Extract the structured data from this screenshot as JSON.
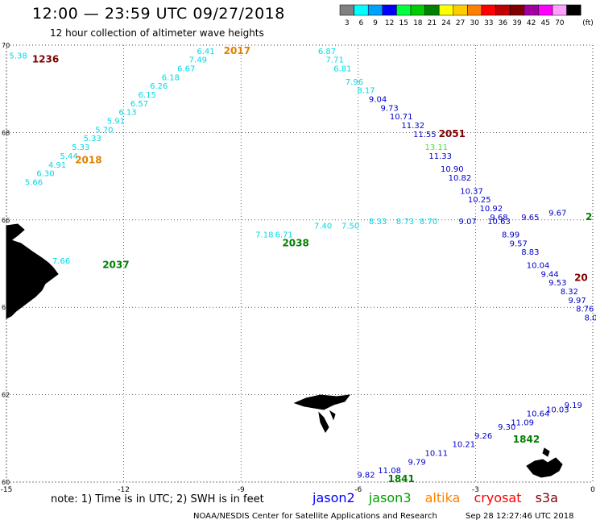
{
  "header": {
    "title": "12:00 — 23:59 UTC 09/27/2018",
    "subtitle": "12 hour collection of altimeter wave heights"
  },
  "legend": {
    "unit": "(ft)",
    "bins": [
      {
        "label": "3",
        "color": "#808080"
      },
      {
        "label": "6",
        "color": "#00ffff"
      },
      {
        "label": "9",
        "color": "#00a0ff"
      },
      {
        "label": "12",
        "color": "#0000ff"
      },
      {
        "label": "15",
        "color": "#00ff40"
      },
      {
        "label": "18",
        "color": "#00cc00"
      },
      {
        "label": "21",
        "color": "#008000"
      },
      {
        "label": "24",
        "color": "#ffff00"
      },
      {
        "label": "27",
        "color": "#ffcc00"
      },
      {
        "label": "30",
        "color": "#ff8000"
      },
      {
        "label": "33",
        "color": "#ff0000"
      },
      {
        "label": "36",
        "color": "#c00000"
      },
      {
        "label": "39",
        "color": "#800000"
      },
      {
        "label": "42",
        "color": "#a000a0"
      },
      {
        "label": "45",
        "color": "#ff00ff"
      },
      {
        "label": "70",
        "color": "#ffa0ff"
      },
      {
        "label": "",
        "color": "#000000"
      }
    ]
  },
  "axes": {
    "lon_ticks": [
      "-15",
      "-12",
      "-9",
      "-6",
      "-3",
      "0"
    ],
    "lat_ticks": [
      "70",
      "68",
      "66",
      "64",
      "62",
      "60"
    ]
  },
  "tracks": [
    {
      "satellite": "cryosat",
      "color": "#00d8e8",
      "points": [
        {
          "lon": -14.7,
          "lat": 69.7,
          "swh": "5.38"
        },
        {
          "lon": -9.9,
          "lat": 69.8,
          "swh": "6.41"
        },
        {
          "lon": -10.1,
          "lat": 69.6,
          "swh": "7.49"
        },
        {
          "lon": -10.4,
          "lat": 69.4,
          "swh": "6.67"
        },
        {
          "lon": -10.8,
          "lat": 69.2,
          "swh": "6.18"
        },
        {
          "lon": -11.1,
          "lat": 69.0,
          "swh": "6.26"
        },
        {
          "lon": -11.4,
          "lat": 68.8,
          "swh": "6.15"
        },
        {
          "lon": -11.6,
          "lat": 68.6,
          "swh": "6.57"
        },
        {
          "lon": -11.9,
          "lat": 68.4,
          "swh": "6.13"
        },
        {
          "lon": -12.2,
          "lat": 68.2,
          "swh": "5.91"
        },
        {
          "lon": -12.5,
          "lat": 68.0,
          "swh": "5.70"
        },
        {
          "lon": -12.8,
          "lat": 67.8,
          "swh": "5.33"
        },
        {
          "lon": -13.1,
          "lat": 67.6,
          "swh": "5.33"
        },
        {
          "lon": -13.4,
          "lat": 67.4,
          "swh": "5.44"
        },
        {
          "lon": -13.7,
          "lat": 67.2,
          "swh": "4.91"
        },
        {
          "lon": -14.0,
          "lat": 67.0,
          "swh": "6.30"
        },
        {
          "lon": -14.3,
          "lat": 66.8,
          "swh": "5.66"
        }
      ]
    },
    {
      "satellite": "cryosat",
      "color": "#00d8e8",
      "points": [
        {
          "lon": -6.8,
          "lat": 69.8,
          "swh": "6.87"
        },
        {
          "lon": -6.6,
          "lat": 69.6,
          "swh": "7.71"
        },
        {
          "lon": -6.4,
          "lat": 69.4,
          "swh": "6.81"
        },
        {
          "lon": -6.1,
          "lat": 69.1,
          "swh": "7.96"
        },
        {
          "lon": -5.8,
          "lat": 68.9,
          "swh": "8.17"
        }
      ]
    },
    {
      "satellite": "jason2",
      "color": "#0000c8",
      "points": [
        {
          "lon": -5.5,
          "lat": 68.7,
          "swh": "9.04"
        },
        {
          "lon": -5.2,
          "lat": 68.5,
          "swh": "9.73"
        },
        {
          "lon": -4.9,
          "lat": 68.3,
          "swh": "10.71"
        },
        {
          "lon": -4.6,
          "lat": 68.1,
          "swh": "11.32"
        },
        {
          "lon": -4.3,
          "lat": 67.9,
          "swh": "11.55"
        }
      ]
    },
    {
      "satellite": "jason3",
      "color": "#40e040",
      "points": [
        {
          "lon": -4.0,
          "lat": 67.6,
          "swh": "13.11"
        }
      ]
    },
    {
      "satellite": "jason2",
      "color": "#0000c8",
      "points": [
        {
          "lon": -3.9,
          "lat": 67.4,
          "swh": "11.33"
        },
        {
          "lon": -3.6,
          "lat": 67.1,
          "swh": "10.90"
        },
        {
          "lon": -3.4,
          "lat": 66.9,
          "swh": "10.82"
        },
        {
          "lon": -3.1,
          "lat": 66.6,
          "swh": "10.37"
        },
        {
          "lon": -2.9,
          "lat": 66.4,
          "swh": "10.25"
        },
        {
          "lon": -2.6,
          "lat": 66.2,
          "swh": "10.92"
        },
        {
          "lon": -2.4,
          "lat": 65.9,
          "swh": "10.63"
        },
        {
          "lon": -2.1,
          "lat": 65.6,
          "swh": "8.99"
        },
        {
          "lon": -1.9,
          "lat": 65.4,
          "swh": "9.57"
        },
        {
          "lon": -1.6,
          "lat": 65.2,
          "swh": "8.83"
        },
        {
          "lon": -1.4,
          "lat": 64.9,
          "swh": "10.04"
        },
        {
          "lon": -1.1,
          "lat": 64.7,
          "swh": "9.44"
        },
        {
          "lon": -0.9,
          "lat": 64.5,
          "swh": "9.53"
        },
        {
          "lon": -0.6,
          "lat": 64.3,
          "swh": "8.32"
        },
        {
          "lon": -0.4,
          "lat": 64.1,
          "swh": "9.97"
        },
        {
          "lon": -0.2,
          "lat": 63.9,
          "swh": "8.76"
        },
        {
          "lon": -0.05,
          "lat": 63.7,
          "swh": "8.0"
        }
      ]
    },
    {
      "satellite": "cryosat",
      "color": "#00d8e8",
      "points": [
        {
          "lon": -13.6,
          "lat": 65.0,
          "swh": "7.66"
        },
        {
          "lon": -8.4,
          "lat": 65.6,
          "swh": "7.18"
        },
        {
          "lon": -7.9,
          "lat": 65.6,
          "swh": "6.71"
        },
        {
          "lon": -6.9,
          "lat": 65.8,
          "swh": "7.40"
        },
        {
          "lon": -6.2,
          "lat": 65.8,
          "swh": "7.50"
        },
        {
          "lon": -5.5,
          "lat": 65.9,
          "swh": "8.33"
        },
        {
          "lon": -4.8,
          "lat": 65.9,
          "swh": "8.73"
        },
        {
          "lon": -4.2,
          "lat": 65.9,
          "swh": "8.70"
        }
      ]
    },
    {
      "satellite": "jason2",
      "color": "#0000c8",
      "points": [
        {
          "lon": -3.2,
          "lat": 65.9,
          "swh": "9.07"
        },
        {
          "lon": -2.4,
          "lat": 66.0,
          "swh": "9.68"
        },
        {
          "lon": -1.6,
          "lat": 66.0,
          "swh": "9.65"
        },
        {
          "lon": -0.9,
          "lat": 66.1,
          "swh": "9.67"
        }
      ]
    },
    {
      "satellite": "jason2",
      "color": "#0000c8",
      "points": [
        {
          "lon": -5.8,
          "lat": 60.1,
          "swh": "9.82"
        },
        {
          "lon": -5.2,
          "lat": 60.2,
          "swh": "11.08"
        },
        {
          "lon": -4.5,
          "lat": 60.4,
          "swh": "9.79"
        },
        {
          "lon": -4.0,
          "lat": 60.6,
          "swh": "10.11"
        },
        {
          "lon": -3.3,
          "lat": 60.8,
          "swh": "10.21"
        },
        {
          "lon": -2.8,
          "lat": 61.0,
          "swh": "9.26"
        },
        {
          "lon": -2.2,
          "lat": 61.2,
          "swh": "9.30"
        },
        {
          "lon": -1.8,
          "lat": 61.3,
          "swh": "11.09"
        },
        {
          "lon": -1.4,
          "lat": 61.5,
          "swh": "10.64"
        },
        {
          "lon": -0.9,
          "lat": 61.6,
          "swh": "10.03"
        },
        {
          "lon": -0.5,
          "lat": 61.7,
          "swh": "9.19"
        }
      ]
    }
  ],
  "pass_times": [
    {
      "label": "1236",
      "color": "#800000",
      "lon": -14.0,
      "lat": 69.6
    },
    {
      "label": "2017",
      "color": "#e08000",
      "lon": -9.1,
      "lat": 69.8
    },
    {
      "label": "2018",
      "color": "#e08000",
      "lon": -12.9,
      "lat": 67.3
    },
    {
      "label": "2051",
      "color": "#800000",
      "lon": -3.6,
      "lat": 67.9
    },
    {
      "label": "2037",
      "color": "#008000",
      "lon": -12.2,
      "lat": 64.9
    },
    {
      "label": "2038",
      "color": "#008000",
      "lon": -7.6,
      "lat": 65.4
    },
    {
      "label": "2",
      "color": "#008000",
      "lon": -0.1,
      "lat": 66.0
    },
    {
      "label": "20",
      "color": "#800000",
      "lon": -0.3,
      "lat": 64.6
    },
    {
      "label": "1842",
      "color": "#008000",
      "lon": -1.7,
      "lat": 60.9
    },
    {
      "label": "1841",
      "color": "#008000",
      "lon": -4.9,
      "lat": 60.0
    }
  ],
  "footer": {
    "note": "note:  1) Time is in UTC;  2) SWH is in feet",
    "satellites": [
      {
        "name": "jason2",
        "color": "#0000ff"
      },
      {
        "name": "jason3",
        "color": "#00a000"
      },
      {
        "name": "altika",
        "color": "#ff8000"
      },
      {
        "name": "cryosat",
        "color": "#ff0000"
      },
      {
        "name": "s3a",
        "color": "#800000"
      }
    ],
    "credit": "NOAA/NESDIS Center for Satellite Applications and Research",
    "timestamp": "Sep 28 12:27:46 UTC 2018"
  }
}
